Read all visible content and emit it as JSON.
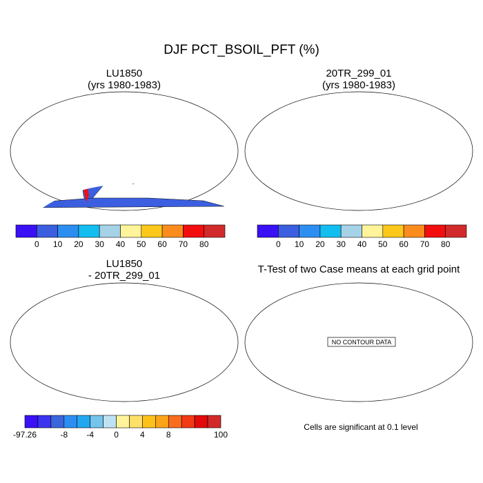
{
  "main_title": "DJF PCT_BSOIL_PFT (%)",
  "panels": {
    "tl": {
      "title1": "LU1850",
      "title2": "(yrs 1980-1983)"
    },
    "tr": {
      "title1": "20TR_299_01",
      "title2": "(yrs 1980-1983)"
    },
    "bl": {
      "title1": "LU1850",
      "title2": "- 20TR_299_01"
    },
    "br": {
      "title1": "T-Test of two Case means at each grid point",
      "no_data": "NO CONTOUR DATA",
      "footer": "Cells are significant at 0.1 level"
    }
  },
  "colorbar_top": {
    "colors": [
      "#3a10f5",
      "#3b5fe0",
      "#2d8ef2",
      "#12bdf0",
      "#a6d2e8",
      "#fff49a",
      "#fdc81a",
      "#fa8c1e",
      "#f20e0e",
      "#d22a2a"
    ],
    "labels": [
      "0",
      "10",
      "20",
      "30",
      "40",
      "50",
      "60",
      "70",
      "80"
    ]
  },
  "colorbar_bottom": {
    "colors": [
      "#3a10f5",
      "#3b35f0",
      "#3a66dc",
      "#2d8ef2",
      "#22a8f0",
      "#74c4ec",
      "#bfe2f2",
      "#fff49a",
      "#fde06a",
      "#fdc21a",
      "#fba41a",
      "#f86e1e",
      "#f23a14",
      "#e20a0a",
      "#d22a2a"
    ],
    "labels": [
      "-97.26",
      "-8",
      "-4",
      "0",
      "4",
      "8",
      "100"
    ]
  },
  "map_colors": {
    "ocean": "#ffffff",
    "land_low": "#3b5fe0",
    "land_high": "#d22a2a",
    "diff_land": "#fff49a"
  }
}
